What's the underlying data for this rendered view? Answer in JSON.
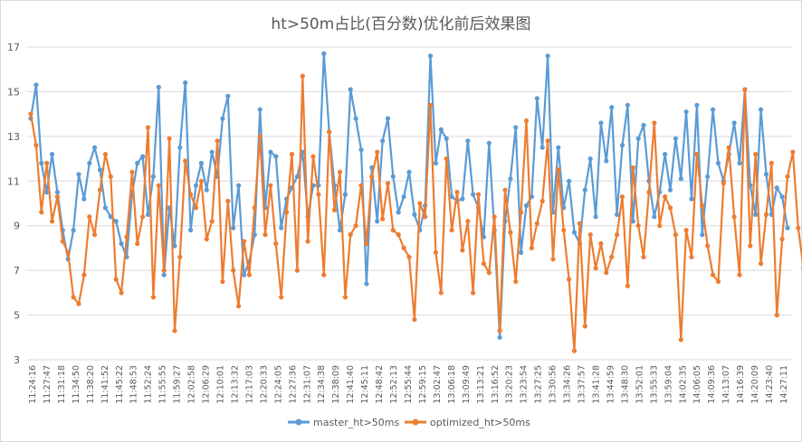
{
  "chart_data": {
    "type": "line",
    "title": "ht>50m占比(百分数)优化前后效果图",
    "xlabel": "",
    "ylabel": "",
    "ylim": [
      3,
      17
    ],
    "yticks": [
      3,
      5,
      7,
      9,
      11,
      13,
      15,
      17
    ],
    "grid": "horizontal",
    "legend_position": "bottom",
    "x_tick_labels": [
      "11:24:16",
      "11:27:47",
      "11:31:18",
      "11:34:50",
      "11:38:20",
      "11:41:52",
      "11:45:22",
      "11:48:53",
      "11:52:24",
      "11:55:55",
      "11:59:27",
      "12:02:58",
      "12:06:29",
      "12:10:01",
      "12:13:32",
      "12:17:03",
      "12:20:33",
      "12:24:05",
      "12:27:36",
      "12:31:07",
      "12:34:38",
      "12:38:09",
      "12:41:40",
      "12:45:11",
      "12:48:42",
      "12:52:13",
      "12:55:44",
      "12:59:15",
      "13:02:47",
      "13:06:18",
      "13:09:49",
      "13:13:21",
      "13:16:52",
      "13:20:23",
      "13:23:54",
      "13:27:25",
      "13:30:56",
      "13:34:26",
      "13:37:57",
      "13:41:28",
      "13:44:59",
      "13:48:30",
      "13:52:01",
      "13:55:33",
      "13:59:04",
      "14:02:35",
      "14:06:05",
      "14:09:36",
      "14:13:07",
      "14:16:39",
      "14:20:09",
      "14:23:40",
      "14:27:11"
    ],
    "series": [
      {
        "name": "master_ht>50ms",
        "color": "#5b9bd5",
        "values": [
          13.8,
          15.3,
          11.8,
          10.5,
          12.2,
          10.5,
          8.8,
          7.5,
          8.8,
          11.3,
          10.2,
          11.8,
          12.5,
          11.5,
          9.8,
          9.4,
          9.2,
          8.2,
          7.6,
          10.4,
          11.8,
          12.1,
          9.5,
          11.2,
          15.2,
          6.8,
          9.8,
          8.1,
          12.5,
          15.4,
          8.8,
          10.8,
          11.8,
          10.6,
          12.3,
          11.2,
          13.8,
          14.8,
          8.9,
          10.8,
          6.8,
          7.4,
          8.6,
          14.2,
          9.8,
          12.3,
          12.1,
          8.9,
          10.2,
          10.7,
          11.2,
          12.3,
          9.4,
          10.8,
          10.8,
          16.7,
          13.2,
          10.8,
          8.8,
          10.4,
          15.1,
          13.8,
          12.4,
          6.4,
          11.6,
          9.2,
          12.8,
          13.8,
          11.2,
          9.6,
          10.3,
          11.4,
          9.5,
          8.8,
          9.9,
          16.6,
          11.8,
          13.3,
          12.9,
          10.3,
          10.1,
          10.2,
          12.8,
          10.4,
          9.8,
          8.5,
          12.7,
          8.8,
          4.0,
          9.2,
          11.1,
          13.4,
          7.8,
          9.9,
          10.3,
          14.7,
          12.5,
          16.6,
          9.6,
          12.5,
          9.8,
          11.0,
          8.7,
          8.2,
          10.6,
          12.0,
          9.4,
          13.6,
          11.9,
          14.3,
          9.5,
          12.6,
          14.4,
          9.2,
          12.9,
          13.5,
          11.0,
          9.4,
          10.5,
          12.2,
          10.6,
          12.9,
          11.1,
          14.1,
          10.2,
          14.4,
          8.6,
          11.2,
          14.2,
          11.8,
          11.0,
          12.2,
          13.6,
          11.8,
          15.1,
          10.8,
          9.5,
          14.2,
          11.3,
          9.5,
          10.7,
          10.3,
          8.9
        ]
      },
      {
        "name": "optimized_ht>50ms",
        "color": "#ed7d31",
        "values": [
          14.0,
          12.6,
          9.6,
          11.8,
          9.2,
          10.3,
          8.3,
          7.8,
          5.8,
          5.5,
          6.8,
          9.4,
          8.6,
          10.6,
          12.2,
          11.2,
          6.6,
          6.0,
          8.5,
          11.4,
          8.2,
          9.4,
          13.4,
          5.8,
          10.8,
          7.0,
          12.9,
          4.3,
          7.6,
          11.9,
          10.4,
          9.8,
          11.0,
          8.4,
          9.2,
          12.8,
          6.5,
          10.1,
          7.0,
          5.4,
          8.3,
          6.8,
          9.8,
          13.0,
          8.6,
          10.8,
          8.2,
          5.8,
          9.6,
          12.2,
          7.0,
          15.7,
          8.3,
          12.1,
          10.4,
          6.8,
          13.2,
          9.7,
          11.4,
          5.8,
          8.6,
          9.0,
          10.8,
          8.2,
          11.2,
          12.3,
          9.3,
          10.9,
          8.8,
          8.6,
          8.0,
          7.6,
          4.8,
          10.0,
          9.4,
          14.4,
          7.8,
          6.0,
          12.0,
          8.8,
          10.5,
          7.9,
          9.2,
          6.0,
          10.4,
          7.3,
          6.9,
          9.4,
          4.3,
          10.6,
          8.7,
          6.5,
          9.6,
          13.7,
          8.0,
          9.1,
          10.1,
          12.8,
          7.5,
          11.5,
          8.8,
          6.6,
          3.4,
          9.1,
          4.5,
          8.6,
          7.1,
          8.2,
          6.9,
          7.6,
          8.6,
          10.3,
          6.3,
          11.6,
          9.0,
          7.6,
          10.5,
          13.6,
          9.0,
          10.3,
          9.8,
          8.6,
          3.9,
          8.8,
          7.6,
          12.2,
          9.9,
          8.1,
          6.8,
          6.5,
          10.9,
          12.5,
          9.4,
          6.8,
          15.1,
          8.1,
          12.2,
          7.3,
          9.5,
          11.8,
          5.0,
          8.4,
          11.2,
          12.3,
          8.9,
          7.1
        ]
      }
    ]
  }
}
